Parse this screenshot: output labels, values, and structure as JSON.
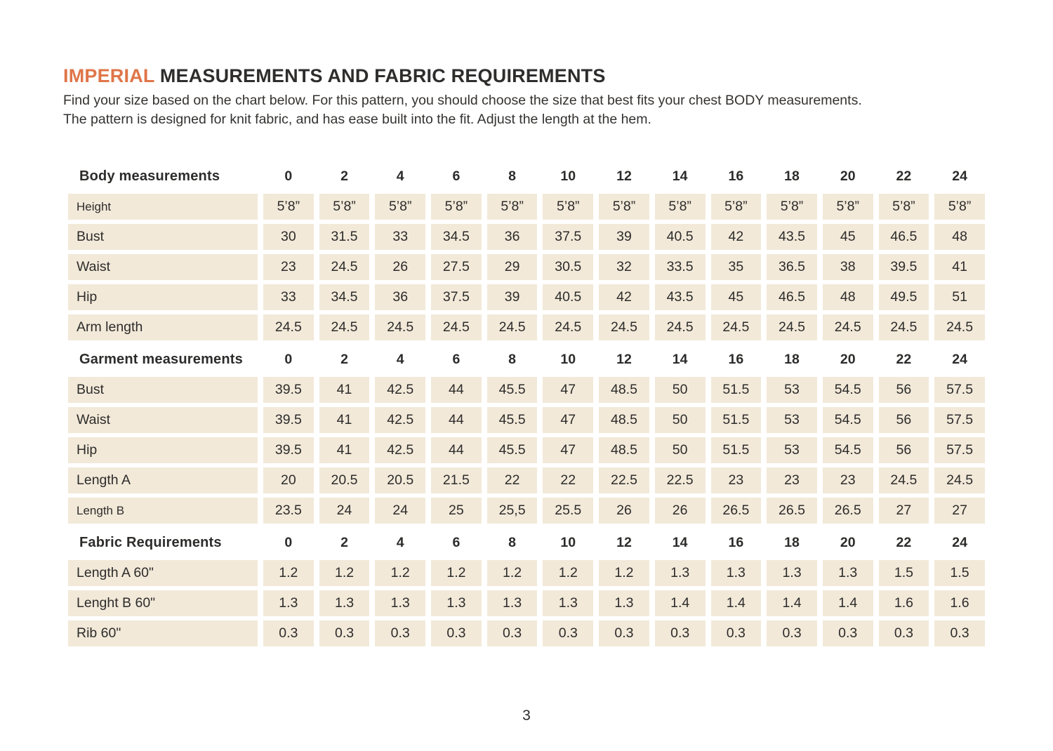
{
  "title": {
    "highlight": "IMPERIAL",
    "rest": "MEASUREMENTS AND FABRIC REQUIREMENTS"
  },
  "intro": {
    "line1": "Find your size based on the chart below. For this pattern, you should choose the size that best fits your chest BODY measurements.",
    "line2": "The pattern is designed for knit fabric, and has ease built into the fit. Adjust the length at the hem."
  },
  "colors": {
    "accent": "#df7549",
    "cell_bg": "#f2e9d9",
    "text": "#2d2c2b"
  },
  "table": {
    "sizes": [
      "0",
      "2",
      "4",
      "6",
      "8",
      "10",
      "12",
      "14",
      "16",
      "18",
      "20",
      "22",
      "24"
    ],
    "sections": [
      {
        "header": "Body measurements",
        "rows": [
          {
            "label": "Height",
            "small": true,
            "values": [
              "5’8”",
              "5’8”",
              "5’8”",
              "5’8”",
              "5’8”",
              "5’8”",
              "5’8”",
              "5’8”",
              "5’8”",
              "5’8”",
              "5’8”",
              "5’8”",
              "5’8”"
            ]
          },
          {
            "label": "Bust",
            "values": [
              "30",
              "31.5",
              "33",
              "34.5",
              "36",
              "37.5",
              "39",
              "40.5",
              "42",
              "43.5",
              "45",
              "46.5",
              "48"
            ]
          },
          {
            "label": "Waist",
            "values": [
              "23",
              "24.5",
              "26",
              "27.5",
              "29",
              "30.5",
              "32",
              "33.5",
              "35",
              "36.5",
              "38",
              "39.5",
              "41"
            ]
          },
          {
            "label": "Hip",
            "values": [
              "33",
              "34.5",
              "36",
              "37.5",
              "39",
              "40.5",
              "42",
              "43.5",
              "45",
              "46.5",
              "48",
              "49.5",
              "51"
            ]
          },
          {
            "label": "Arm length",
            "values": [
              "24.5",
              "24.5",
              "24.5",
              "24.5",
              "24.5",
              "24.5",
              "24.5",
              "24.5",
              "24.5",
              "24.5",
              "24.5",
              "24.5",
              "24.5"
            ]
          }
        ]
      },
      {
        "header": "Garment measurements",
        "rows": [
          {
            "label": "Bust",
            "values": [
              "39.5",
              "41",
              "42.5",
              "44",
              "45.5",
              "47",
              "48.5",
              "50",
              "51.5",
              "53",
              "54.5",
              "56",
              "57.5"
            ]
          },
          {
            "label": "Waist",
            "values": [
              "39.5",
              "41",
              "42.5",
              "44",
              "45.5",
              "47",
              "48.5",
              "50",
              "51.5",
              "53",
              "54.5",
              "56",
              "57.5"
            ]
          },
          {
            "label": "Hip",
            "values": [
              "39.5",
              "41",
              "42.5",
              "44",
              "45.5",
              "47",
              "48.5",
              "50",
              "51.5",
              "53",
              "54.5",
              "56",
              "57.5"
            ]
          },
          {
            "label": "Length A",
            "values": [
              "20",
              "20.5",
              "20.5",
              "21.5",
              "22",
              "22",
              "22.5",
              "22.5",
              "23",
              "23",
              "23",
              "24.5",
              "24.5"
            ]
          },
          {
            "label": "Length B",
            "small": true,
            "values": [
              "23.5",
              "24",
              "24",
              "25",
              "25,5",
              "25.5",
              "26",
              "26",
              "26.5",
              "26.5",
              "26.5",
              "27",
              "27"
            ]
          }
        ]
      },
      {
        "header": "Fabric Requirements",
        "rows": [
          {
            "label": "Length A 60\"",
            "values": [
              "1.2",
              "1.2",
              "1.2",
              "1.2",
              "1.2",
              "1.2",
              "1.2",
              "1.3",
              "1.3",
              "1.3",
              "1.3",
              "1.5",
              "1.5"
            ]
          },
          {
            "label": "Lenght B 60\"",
            "values": [
              "1.3",
              "1.3",
              "1.3",
              "1.3",
              "1.3",
              "1.3",
              "1.3",
              "1.4",
              "1.4",
              "1.4",
              "1.4",
              "1.6",
              "1.6"
            ]
          },
          {
            "label": "Rib 60\"",
            "values": [
              "0.3",
              "0.3",
              "0.3",
              "0.3",
              "0.3",
              "0.3",
              "0.3",
              "0.3",
              "0.3",
              "0.3",
              "0.3",
              "0.3",
              "0.3"
            ]
          }
        ]
      }
    ]
  },
  "page_number": "3"
}
